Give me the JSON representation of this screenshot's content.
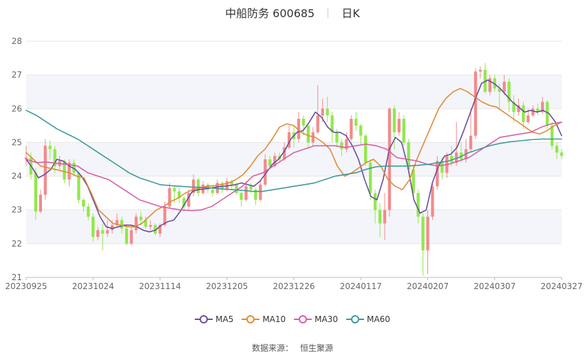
{
  "header": {
    "title": "中船防务 600685",
    "period": "日K"
  },
  "source": {
    "label": "数据来源：",
    "value": "恒生聚源"
  },
  "colors": {
    "up": "#f28b8b",
    "down": "#91e84b",
    "ma5": "#6a4c9c",
    "ma10": "#e08a36",
    "ma30": "#d75ea7",
    "ma60": "#3d9a9b",
    "grid": "#e6e6e6",
    "band": "#f4f5fa",
    "axis_text": "#666666"
  },
  "chart_data": {
    "type": "candlestick",
    "ylim": [
      21,
      28
    ],
    "yticks": [
      21,
      22,
      23,
      24,
      25,
      26,
      27,
      28
    ],
    "xticks": [
      "20230925",
      "20231024",
      "20231114",
      "20231205",
      "20231226",
      "20240117",
      "20240207",
      "20240307",
      "20240327"
    ],
    "legend": [
      "MA5",
      "MA10",
      "MA30",
      "MA60"
    ],
    "legend_position": "bottom",
    "candles": [
      [
        24.5,
        24.55,
        24.9,
        24.3
      ],
      [
        24.55,
        24.05,
        24.7,
        23.9
      ],
      [
        24.1,
        22.95,
        24.25,
        22.7
      ],
      [
        22.95,
        23.45,
        23.6,
        22.9
      ],
      [
        23.45,
        24.9,
        25.1,
        23.3
      ],
      [
        24.9,
        24.8,
        25.05,
        24.5
      ],
      [
        24.8,
        24.3,
        24.9,
        24.1
      ],
      [
        24.3,
        24.45,
        24.6,
        24.2
      ],
      [
        24.45,
        23.9,
        24.5,
        23.8
      ],
      [
        23.9,
        24.4,
        24.5,
        23.7
      ],
      [
        24.4,
        24.1,
        24.5,
        24.0
      ],
      [
        24.1,
        23.3,
        24.15,
        23.2
      ],
      [
        23.3,
        23.1,
        23.35,
        22.95
      ],
      [
        23.1,
        22.8,
        23.2,
        22.7
      ],
      [
        22.8,
        22.2,
        22.9,
        22.05
      ],
      [
        22.2,
        22.4,
        22.5,
        22.1
      ],
      [
        22.4,
        22.3,
        22.6,
        21.8
      ],
      [
        22.3,
        22.4,
        22.7,
        22.2
      ],
      [
        22.4,
        22.55,
        22.7,
        22.3
      ],
      [
        22.55,
        22.7,
        22.9,
        22.5
      ],
      [
        22.7,
        22.45,
        22.8,
        22.3
      ],
      [
        22.45,
        22.0,
        22.55,
        21.95
      ],
      [
        22.0,
        22.4,
        22.5,
        21.95
      ],
      [
        22.4,
        22.8,
        22.9,
        22.3
      ],
      [
        22.8,
        22.7,
        22.95,
        22.55
      ],
      [
        22.7,
        22.5,
        22.8,
        22.45
      ],
      [
        22.5,
        22.55,
        22.7,
        22.4
      ],
      [
        22.55,
        22.3,
        22.6,
        22.25
      ],
      [
        22.3,
        22.55,
        22.6,
        22.2
      ],
      [
        22.55,
        23.1,
        23.25,
        22.5
      ],
      [
        23.1,
        23.65,
        23.8,
        23.05
      ],
      [
        23.65,
        23.55,
        23.7,
        23.2
      ],
      [
        23.55,
        23.35,
        23.65,
        23.2
      ],
      [
        23.35,
        23.1,
        23.4,
        22.95
      ],
      [
        23.1,
        23.5,
        23.6,
        23.0
      ],
      [
        23.5,
        23.9,
        24.05,
        23.4
      ],
      [
        23.9,
        23.5,
        23.95,
        23.4
      ],
      [
        23.5,
        23.75,
        23.85,
        23.45
      ],
      [
        23.75,
        23.6,
        23.8,
        23.5
      ],
      [
        23.6,
        23.5,
        23.7,
        23.4
      ],
      [
        23.5,
        23.8,
        23.9,
        23.45
      ],
      [
        23.8,
        23.6,
        23.85,
        23.5
      ],
      [
        23.6,
        23.85,
        23.95,
        23.55
      ],
      [
        23.85,
        23.75,
        23.9,
        23.6
      ],
      [
        23.75,
        23.5,
        23.8,
        23.45
      ],
      [
        23.5,
        23.3,
        23.55,
        23.1
      ],
      [
        23.3,
        23.7,
        23.85,
        23.25
      ],
      [
        23.7,
        23.6,
        23.8,
        23.5
      ],
      [
        23.6,
        23.3,
        23.65,
        23.15
      ],
      [
        23.3,
        23.75,
        23.85,
        23.25
      ],
      [
        23.75,
        24.5,
        24.65,
        23.7
      ],
      [
        24.5,
        24.3,
        24.6,
        24.2
      ],
      [
        24.3,
        24.6,
        24.7,
        24.25
      ],
      [
        24.6,
        24.5,
        24.7,
        24.4
      ],
      [
        24.5,
        24.85,
        25.0,
        24.45
      ],
      [
        24.85,
        25.3,
        25.5,
        24.8
      ],
      [
        25.3,
        25.1,
        25.5,
        24.85
      ],
      [
        25.1,
        25.7,
        25.9,
        25.0
      ],
      [
        25.7,
        25.5,
        25.8,
        25.2
      ],
      [
        25.5,
        25.0,
        25.55,
        24.85
      ],
      [
        25.0,
        25.3,
        25.45,
        24.9
      ],
      [
        25.3,
        25.8,
        26.7,
        25.25
      ],
      [
        25.8,
        26.0,
        26.3,
        25.6
      ],
      [
        26.0,
        25.8,
        26.35,
        25.6
      ],
      [
        25.8,
        25.3,
        25.9,
        25.0
      ],
      [
        25.3,
        25.0,
        25.4,
        24.9
      ],
      [
        25.0,
        24.8,
        25.1,
        24.6
      ],
      [
        24.8,
        25.1,
        25.3,
        24.7
      ],
      [
        25.1,
        25.7,
        25.8,
        25.05
      ],
      [
        25.7,
        25.5,
        25.9,
        25.35
      ],
      [
        25.5,
        25.2,
        25.55,
        24.95
      ],
      [
        25.2,
        24.4,
        25.25,
        24.3
      ],
      [
        24.4,
        23.5,
        24.5,
        23.3
      ],
      [
        23.5,
        23.0,
        23.6,
        22.6
      ],
      [
        23.0,
        22.6,
        23.2,
        22.2
      ],
      [
        22.6,
        23.0,
        23.5,
        22.1
      ],
      [
        23.0,
        26.0,
        26.05,
        22.8
      ],
      [
        26.0,
        25.3,
        26.1,
        24.8
      ],
      [
        25.3,
        25.7,
        25.9,
        25.2
      ],
      [
        25.7,
        25.0,
        25.8,
        24.9
      ],
      [
        25.0,
        24.2,
        25.1,
        24.1
      ],
      [
        24.2,
        23.5,
        24.3,
        23.4
      ],
      [
        23.5,
        22.8,
        23.6,
        22.6
      ],
      [
        22.8,
        21.8,
        22.9,
        21.05
      ],
      [
        21.8,
        22.8,
        23.0,
        21.1
      ],
      [
        22.8,
        23.7,
        23.8,
        22.7
      ],
      [
        23.7,
        24.45,
        24.6,
        23.6
      ],
      [
        24.45,
        24.1,
        24.55,
        23.9
      ],
      [
        24.1,
        24.6,
        24.7,
        23.95
      ],
      [
        24.6,
        24.4,
        24.9,
        24.3
      ],
      [
        24.4,
        24.7,
        25.6,
        24.3
      ],
      [
        24.7,
        24.5,
        25.0,
        24.4
      ],
      [
        24.5,
        24.8,
        25.1,
        24.4
      ],
      [
        24.8,
        25.2,
        26.0,
        24.7
      ],
      [
        25.2,
        27.1,
        27.2,
        25.1
      ],
      [
        27.1,
        27.15,
        27.25,
        26.9
      ],
      [
        27.15,
        26.5,
        27.35,
        26.45
      ],
      [
        26.5,
        26.9,
        27.0,
        26.4
      ],
      [
        26.9,
        26.6,
        27.0,
        26.5
      ],
      [
        26.6,
        26.5,
        26.75,
        26.0
      ],
      [
        26.5,
        26.8,
        27.0,
        26.4
      ],
      [
        26.8,
        26.2,
        26.9,
        25.9
      ],
      [
        26.2,
        25.9,
        26.4,
        25.6
      ],
      [
        25.9,
        26.1,
        26.3,
        25.8
      ],
      [
        26.1,
        25.6,
        26.2,
        25.4
      ],
      [
        25.6,
        25.8,
        26.0,
        25.55
      ],
      [
        25.8,
        26.0,
        26.1,
        25.75
      ],
      [
        26.0,
        25.9,
        26.15,
        25.8
      ],
      [
        25.9,
        26.2,
        26.35,
        25.85
      ],
      [
        26.2,
        25.5,
        26.25,
        25.4
      ],
      [
        25.5,
        24.9,
        25.6,
        24.8
      ],
      [
        24.9,
        24.7,
        25.0,
        24.5
      ],
      [
        24.7,
        24.6,
        24.8,
        24.5
      ]
    ],
    "ma": {
      "MA5": [
        24.5,
        24.25,
        23.95,
        24.05,
        24.2,
        24.5,
        24.45,
        24.3,
        24.2,
        24.0,
        23.7,
        23.25,
        22.8,
        22.5,
        22.45,
        22.5,
        22.55,
        22.55,
        22.5,
        22.4,
        22.35,
        22.4,
        22.55,
        22.65,
        22.7,
        22.95,
        23.25,
        23.55,
        23.6,
        23.62,
        23.65,
        23.68,
        23.7,
        23.72,
        23.75,
        23.8,
        23.75,
        23.7,
        23.85,
        24.1,
        24.35,
        24.5,
        24.75,
        25.1,
        25.3,
        25.35,
        25.6,
        25.9,
        25.75,
        25.45,
        25.3,
        25.3,
        25.2,
        24.9,
        24.5,
        23.9,
        23.4,
        23.3,
        23.9,
        24.8,
        25.15,
        25.0,
        24.3,
        23.3,
        22.9,
        23.0,
        23.8,
        24.3,
        24.6,
        24.65,
        24.85,
        25.3,
        25.8,
        26.3,
        26.75,
        26.85,
        26.75,
        26.6,
        26.4,
        26.2,
        26.05,
        25.9,
        25.95,
        25.9,
        25.95,
        25.85,
        25.6,
        25.2
      ],
      "MA10": [
        24.7,
        24.5,
        24.3,
        24.25,
        24.2,
        24.15,
        24.1,
        24.0,
        23.95,
        23.5,
        23.0,
        22.8,
        22.6,
        22.55,
        22.5,
        22.5,
        22.6,
        22.8,
        23.0,
        23.1,
        23.25,
        23.35,
        23.5,
        23.6,
        23.65,
        23.7,
        23.72,
        23.75,
        23.8,
        23.9,
        24.05,
        24.3,
        24.6,
        24.8,
        25.1,
        25.45,
        25.55,
        25.5,
        25.3,
        25.2,
        25.15,
        25.0,
        24.8,
        24.3,
        24.0,
        24.1,
        24.25,
        24.4,
        24.5,
        24.3,
        23.9,
        23.7,
        23.6,
        23.9,
        24.5,
        25.0,
        25.5,
        26.0,
        26.3,
        26.5,
        26.6,
        26.5,
        26.35,
        26.2,
        26.1,
        26.05,
        25.9,
        25.75,
        25.6,
        25.45,
        25.3,
        25.25,
        25.35,
        25.5,
        25.6
      ],
      "MA30": [
        24.5,
        24.4,
        24.42,
        24.38,
        24.35,
        24.3,
        24.1,
        24.0,
        23.9,
        23.7,
        23.5,
        23.3,
        23.2,
        23.1,
        23.05,
        23.0,
        22.98,
        23.0,
        23.1,
        23.3,
        23.5,
        23.7,
        24.0,
        24.1,
        24.3,
        24.5,
        24.7,
        24.8,
        24.9,
        24.9,
        24.9,
        24.85,
        24.9,
        24.95,
        24.9,
        24.8,
        24.55,
        24.5,
        24.45,
        24.35,
        24.3,
        24.35,
        24.45,
        24.55,
        24.75,
        24.95,
        25.15,
        25.2,
        25.25,
        25.3,
        25.45,
        25.55,
        25.6
      ],
      "MA60": [
        25.95,
        25.8,
        25.6,
        25.4,
        25.25,
        25.1,
        24.9,
        24.7,
        24.5,
        24.3,
        24.1,
        23.95,
        23.85,
        23.75,
        23.72,
        23.7,
        23.68,
        23.67,
        23.65,
        23.62,
        23.6,
        23.58,
        23.55,
        23.55,
        23.6,
        23.65,
        23.7,
        23.75,
        23.8,
        23.9,
        24.0,
        24.05,
        24.1,
        24.2,
        24.28,
        24.3,
        24.3,
        24.3,
        24.32,
        24.35,
        24.4,
        24.45,
        24.55,
        24.7,
        24.8,
        24.9,
        24.97,
        25.02,
        25.05,
        25.08,
        25.1,
        25.1,
        25.1
      ]
    }
  }
}
